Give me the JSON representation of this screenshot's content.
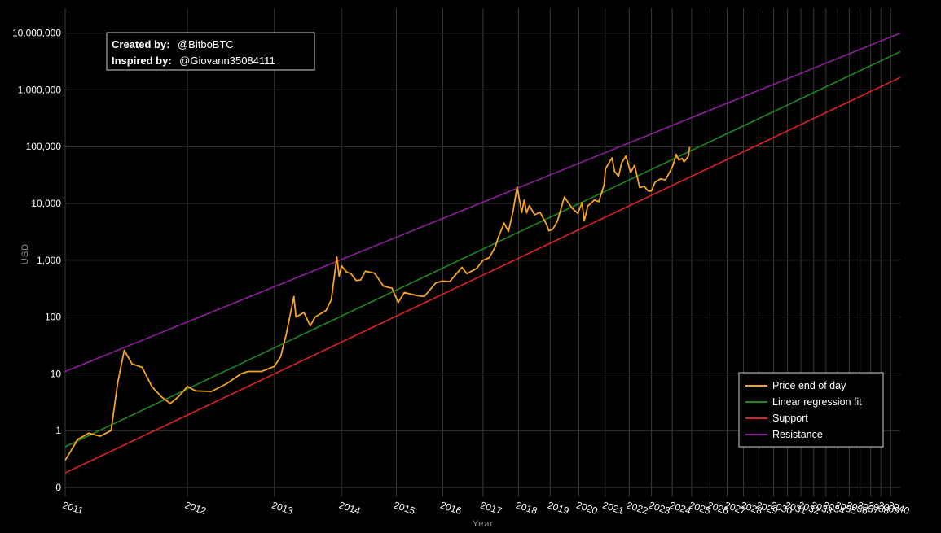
{
  "chart_data": {
    "type": "line",
    "title": "",
    "xlabel": "Year",
    "ylabel": "USD",
    "y_scale": "log",
    "y_ticks": [
      {
        "value": 0.1,
        "label": "0"
      },
      {
        "value": 1,
        "label": "1"
      },
      {
        "value": 10,
        "label": "10"
      },
      {
        "value": 100,
        "label": "100"
      },
      {
        "value": 1000,
        "label": "1,000"
      },
      {
        "value": 10000,
        "label": "10,000"
      },
      {
        "value": 100000,
        "label": "100,000"
      },
      {
        "value": 1000000,
        "label": "1,000,000"
      },
      {
        "value": 10000000,
        "label": "10,000,000"
      }
    ],
    "x_scale": "log of days since genesis block",
    "x_ticks": [
      "2011",
      "2012",
      "2013",
      "2014",
      "2015",
      "2016",
      "2017",
      "2018",
      "2019",
      "2020",
      "2021",
      "2022",
      "2023",
      "2024",
      "2025",
      "2026",
      "2027",
      "2028",
      "2029",
      "2030",
      "2031",
      "2032",
      "2033",
      "2034",
      "2035",
      "2036",
      "2037",
      "2038",
      "2039",
      "2040"
    ],
    "grid": true,
    "legend_position": "bottom-right",
    "annotation": {
      "created_label": "Created by:",
      "created_value": "@BitboBTC",
      "inspired_label": "Inspired by:",
      "inspired_value": "@Giovann35084111"
    },
    "series": [
      {
        "name": "Price end of day",
        "color": "#f7a325",
        "points": [
          [
            "2011-01-01",
            0.3
          ],
          [
            "2011-02-01",
            0.7
          ],
          [
            "2011-03-01",
            0.9
          ],
          [
            "2011-04-01",
            0.8
          ],
          [
            "2011-05-01",
            1.0
          ],
          [
            "2011-05-20",
            7
          ],
          [
            "2011-06-08",
            26
          ],
          [
            "2011-07-01",
            15
          ],
          [
            "2011-08-01",
            13
          ],
          [
            "2011-09-01",
            6
          ],
          [
            "2011-10-01",
            4
          ],
          [
            "2011-11-01",
            3
          ],
          [
            "2011-12-01",
            4
          ],
          [
            "2012-01-01",
            6
          ],
          [
            "2012-02-01",
            5
          ],
          [
            "2012-04-01",
            4.9
          ],
          [
            "2012-06-01",
            6.7
          ],
          [
            "2012-08-01",
            10
          ],
          [
            "2012-09-01",
            11
          ],
          [
            "2012-11-01",
            11
          ],
          [
            "2013-01-01",
            13.5
          ],
          [
            "2013-02-01",
            20
          ],
          [
            "2013-03-01",
            50
          ],
          [
            "2013-04-09",
            230
          ],
          [
            "2013-04-20",
            100
          ],
          [
            "2013-06-01",
            120
          ],
          [
            "2013-07-05",
            70
          ],
          [
            "2013-08-01",
            100
          ],
          [
            "2013-10-01",
            130
          ],
          [
            "2013-11-01",
            200
          ],
          [
            "2013-12-04",
            1150
          ],
          [
            "2013-12-18",
            520
          ],
          [
            "2014-01-01",
            800
          ],
          [
            "2014-02-01",
            620
          ],
          [
            "2014-03-01",
            580
          ],
          [
            "2014-04-01",
            440
          ],
          [
            "2014-05-01",
            450
          ],
          [
            "2014-06-01",
            640
          ],
          [
            "2014-08-01",
            590
          ],
          [
            "2014-10-01",
            350
          ],
          [
            "2014-12-01",
            320
          ],
          [
            "2015-01-14",
            180
          ],
          [
            "2015-03-01",
            270
          ],
          [
            "2015-06-01",
            240
          ],
          [
            "2015-08-01",
            230
          ],
          [
            "2015-11-04",
            400
          ],
          [
            "2016-01-01",
            430
          ],
          [
            "2016-03-01",
            420
          ],
          [
            "2016-06-17",
            750
          ],
          [
            "2016-08-01",
            580
          ],
          [
            "2016-11-01",
            720
          ],
          [
            "2017-01-01",
            1000
          ],
          [
            "2017-03-01",
            1100
          ],
          [
            "2017-05-01",
            1700
          ],
          [
            "2017-06-01",
            2500
          ],
          [
            "2017-08-01",
            4500
          ],
          [
            "2017-09-15",
            3200
          ],
          [
            "2017-11-01",
            7000
          ],
          [
            "2017-12-17",
            19500
          ],
          [
            "2018-02-06",
            6900
          ],
          [
            "2018-03-05",
            11500
          ],
          [
            "2018-04-01",
            6800
          ],
          [
            "2018-05-01",
            9200
          ],
          [
            "2018-07-01",
            6300
          ],
          [
            "2018-09-01",
            7000
          ],
          [
            "2018-11-20",
            4200
          ],
          [
            "2018-12-15",
            3300
          ],
          [
            "2019-02-01",
            3500
          ],
          [
            "2019-04-01",
            4900
          ],
          [
            "2019-06-26",
            13000
          ],
          [
            "2019-08-01",
            11000
          ],
          [
            "2019-10-01",
            8300
          ],
          [
            "2019-12-17",
            6700
          ],
          [
            "2020-02-13",
            10300
          ],
          [
            "2020-03-12",
            4900
          ],
          [
            "2020-05-01",
            9000
          ],
          [
            "2020-08-01",
            11500
          ],
          [
            "2020-10-01",
            10700
          ],
          [
            "2020-12-16",
            21000
          ],
          [
            "2021-01-08",
            41000
          ],
          [
            "2021-04-14",
            63500
          ],
          [
            "2021-05-19",
            37000
          ],
          [
            "2021-07-20",
            30000
          ],
          [
            "2021-09-06",
            52000
          ],
          [
            "2021-11-10",
            68500
          ],
          [
            "2022-01-24",
            35000
          ],
          [
            "2022-03-28",
            47000
          ],
          [
            "2022-06-18",
            19000
          ],
          [
            "2022-09-01",
            20000
          ],
          [
            "2022-11-09",
            16500
          ],
          [
            "2023-01-01",
            16600
          ],
          [
            "2023-03-01",
            23500
          ],
          [
            "2023-06-01",
            27000
          ],
          [
            "2023-09-01",
            26000
          ],
          [
            "2023-12-01",
            38000
          ],
          [
            "2024-01-11",
            46000
          ],
          [
            "2024-03-14",
            73000
          ],
          [
            "2024-05-01",
            58000
          ],
          [
            "2024-07-01",
            62000
          ],
          [
            "2024-08-05",
            54000
          ],
          [
            "2024-10-01",
            62000
          ],
          [
            "2024-11-01",
            70000
          ],
          [
            "2024-11-22",
            98000
          ]
        ]
      },
      {
        "name": "Linear regression fit",
        "color": "#1e8a1e",
        "points": [
          [
            "2011-01-01",
            0.52
          ],
          [
            "2040-12-31",
            4700000
          ]
        ]
      },
      {
        "name": "Support",
        "color": "#e02222",
        "points": [
          [
            "2011-01-01",
            0.18
          ],
          [
            "2040-12-31",
            1650000
          ]
        ]
      },
      {
        "name": "Resistance",
        "color": "#8e1e9e",
        "points": [
          [
            "2011-01-01",
            11
          ],
          [
            "2040-12-31",
            10000000
          ]
        ]
      }
    ]
  }
}
